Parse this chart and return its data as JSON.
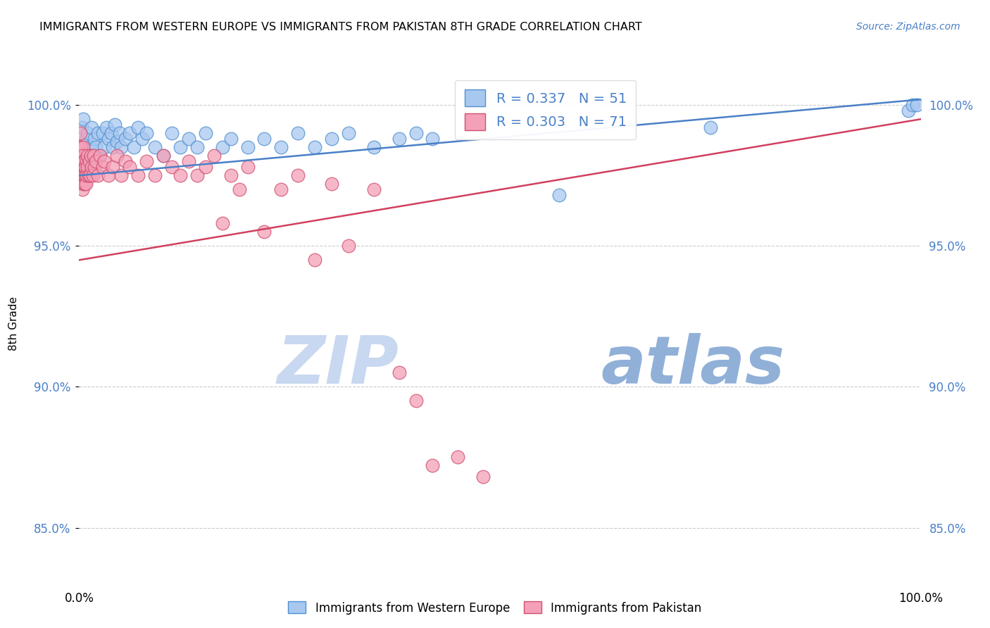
{
  "title": "IMMIGRANTS FROM WESTERN EUROPE VS IMMIGRANTS FROM PAKISTAN 8TH GRADE CORRELATION CHART",
  "source": "Source: ZipAtlas.com",
  "ylabel": "8th Grade",
  "xlim": [
    0.0,
    100.0
  ],
  "ylim": [
    83.0,
    101.5
  ],
  "yticks": [
    85.0,
    90.0,
    95.0,
    100.0
  ],
  "ytick_labels": [
    "85.0%",
    "90.0%",
    "95.0%",
    "100.0%"
  ],
  "xtick_labels": [
    "0.0%",
    "100.0%"
  ],
  "legend_blue_label": "R = 0.337   N = 51",
  "legend_pink_label": "R = 0.303   N = 71",
  "blue_color": "#A8C8F0",
  "pink_color": "#F4A0B8",
  "blue_edge_color": "#5090D0",
  "pink_edge_color": "#D05070",
  "blue_line_color": "#4A80C8",
  "pink_line_color": "#D04060",
  "watermark_zip": "ZIP",
  "watermark_atlas": "atlas",
  "watermark_color_zip": "#C8D8F0",
  "watermark_color_atlas": "#90B0D8",
  "blue_x": [
    0.3,
    0.5,
    0.8,
    1.0,
    1.2,
    1.5,
    1.8,
    2.0,
    2.2,
    2.5,
    2.8,
    3.0,
    3.2,
    3.5,
    3.8,
    4.0,
    4.2,
    4.5,
    4.8,
    5.0,
    5.5,
    6.0,
    6.5,
    7.0,
    7.5,
    8.0,
    9.0,
    10.0,
    11.0,
    12.0,
    13.0,
    14.0,
    15.0,
    17.0,
    18.0,
    20.0,
    22.0,
    24.0,
    26.0,
    28.0,
    30.0,
    32.0,
    35.0,
    38.0,
    40.0,
    42.0,
    57.0,
    75.0,
    98.5,
    99.0,
    99.5
  ],
  "blue_y": [
    99.2,
    99.5,
    98.8,
    99.0,
    98.5,
    99.2,
    98.8,
    98.5,
    99.0,
    98.2,
    99.0,
    98.5,
    99.2,
    98.8,
    99.0,
    98.5,
    99.3,
    98.7,
    99.0,
    98.5,
    98.8,
    99.0,
    98.5,
    99.2,
    98.8,
    99.0,
    98.5,
    98.2,
    99.0,
    98.5,
    98.8,
    98.5,
    99.0,
    98.5,
    98.8,
    98.5,
    98.8,
    98.5,
    99.0,
    98.5,
    98.8,
    99.0,
    98.5,
    98.8,
    99.0,
    98.8,
    96.8,
    99.2,
    99.8,
    100.0,
    100.0
  ],
  "pink_x": [
    0.1,
    0.15,
    0.2,
    0.25,
    0.3,
    0.3,
    0.35,
    0.35,
    0.4,
    0.4,
    0.45,
    0.45,
    0.5,
    0.5,
    0.55,
    0.55,
    0.6,
    0.6,
    0.65,
    0.7,
    0.75,
    0.8,
    0.85,
    0.9,
    0.95,
    1.0,
    1.1,
    1.2,
    1.3,
    1.4,
    1.5,
    1.6,
    1.7,
    1.8,
    2.0,
    2.2,
    2.5,
    2.8,
    3.0,
    3.5,
    4.0,
    4.5,
    5.0,
    5.5,
    6.0,
    7.0,
    8.0,
    9.0,
    10.0,
    11.0,
    12.0,
    13.0,
    14.0,
    15.0,
    16.0,
    17.0,
    18.0,
    19.0,
    20.0,
    22.0,
    24.0,
    26.0,
    28.0,
    30.0,
    32.0,
    35.0,
    38.0,
    40.0,
    42.0,
    45.0,
    48.0
  ],
  "pink_y": [
    98.5,
    99.0,
    98.0,
    98.5,
    97.5,
    98.2,
    97.0,
    98.0,
    97.5,
    98.0,
    97.2,
    98.5,
    97.8,
    98.2,
    97.5,
    98.0,
    97.2,
    97.8,
    98.0,
    97.5,
    97.8,
    97.2,
    98.0,
    97.5,
    98.2,
    97.8,
    97.5,
    98.0,
    97.5,
    98.2,
    97.8,
    97.5,
    98.2,
    97.8,
    98.0,
    97.5,
    98.2,
    97.8,
    98.0,
    97.5,
    97.8,
    98.2,
    97.5,
    98.0,
    97.8,
    97.5,
    98.0,
    97.5,
    98.2,
    97.8,
    97.5,
    98.0,
    97.5,
    97.8,
    98.2,
    95.8,
    97.5,
    97.0,
    97.8,
    95.5,
    97.0,
    97.5,
    94.5,
    97.2,
    95.0,
    97.0,
    90.5,
    89.5,
    87.2,
    87.5,
    86.8
  ],
  "blue_trend_x": [
    0.0,
    100.0
  ],
  "blue_trend_y": [
    97.5,
    100.2
  ],
  "pink_trend_x": [
    0.0,
    100.0
  ],
  "pink_trend_y": [
    94.5,
    99.5
  ]
}
